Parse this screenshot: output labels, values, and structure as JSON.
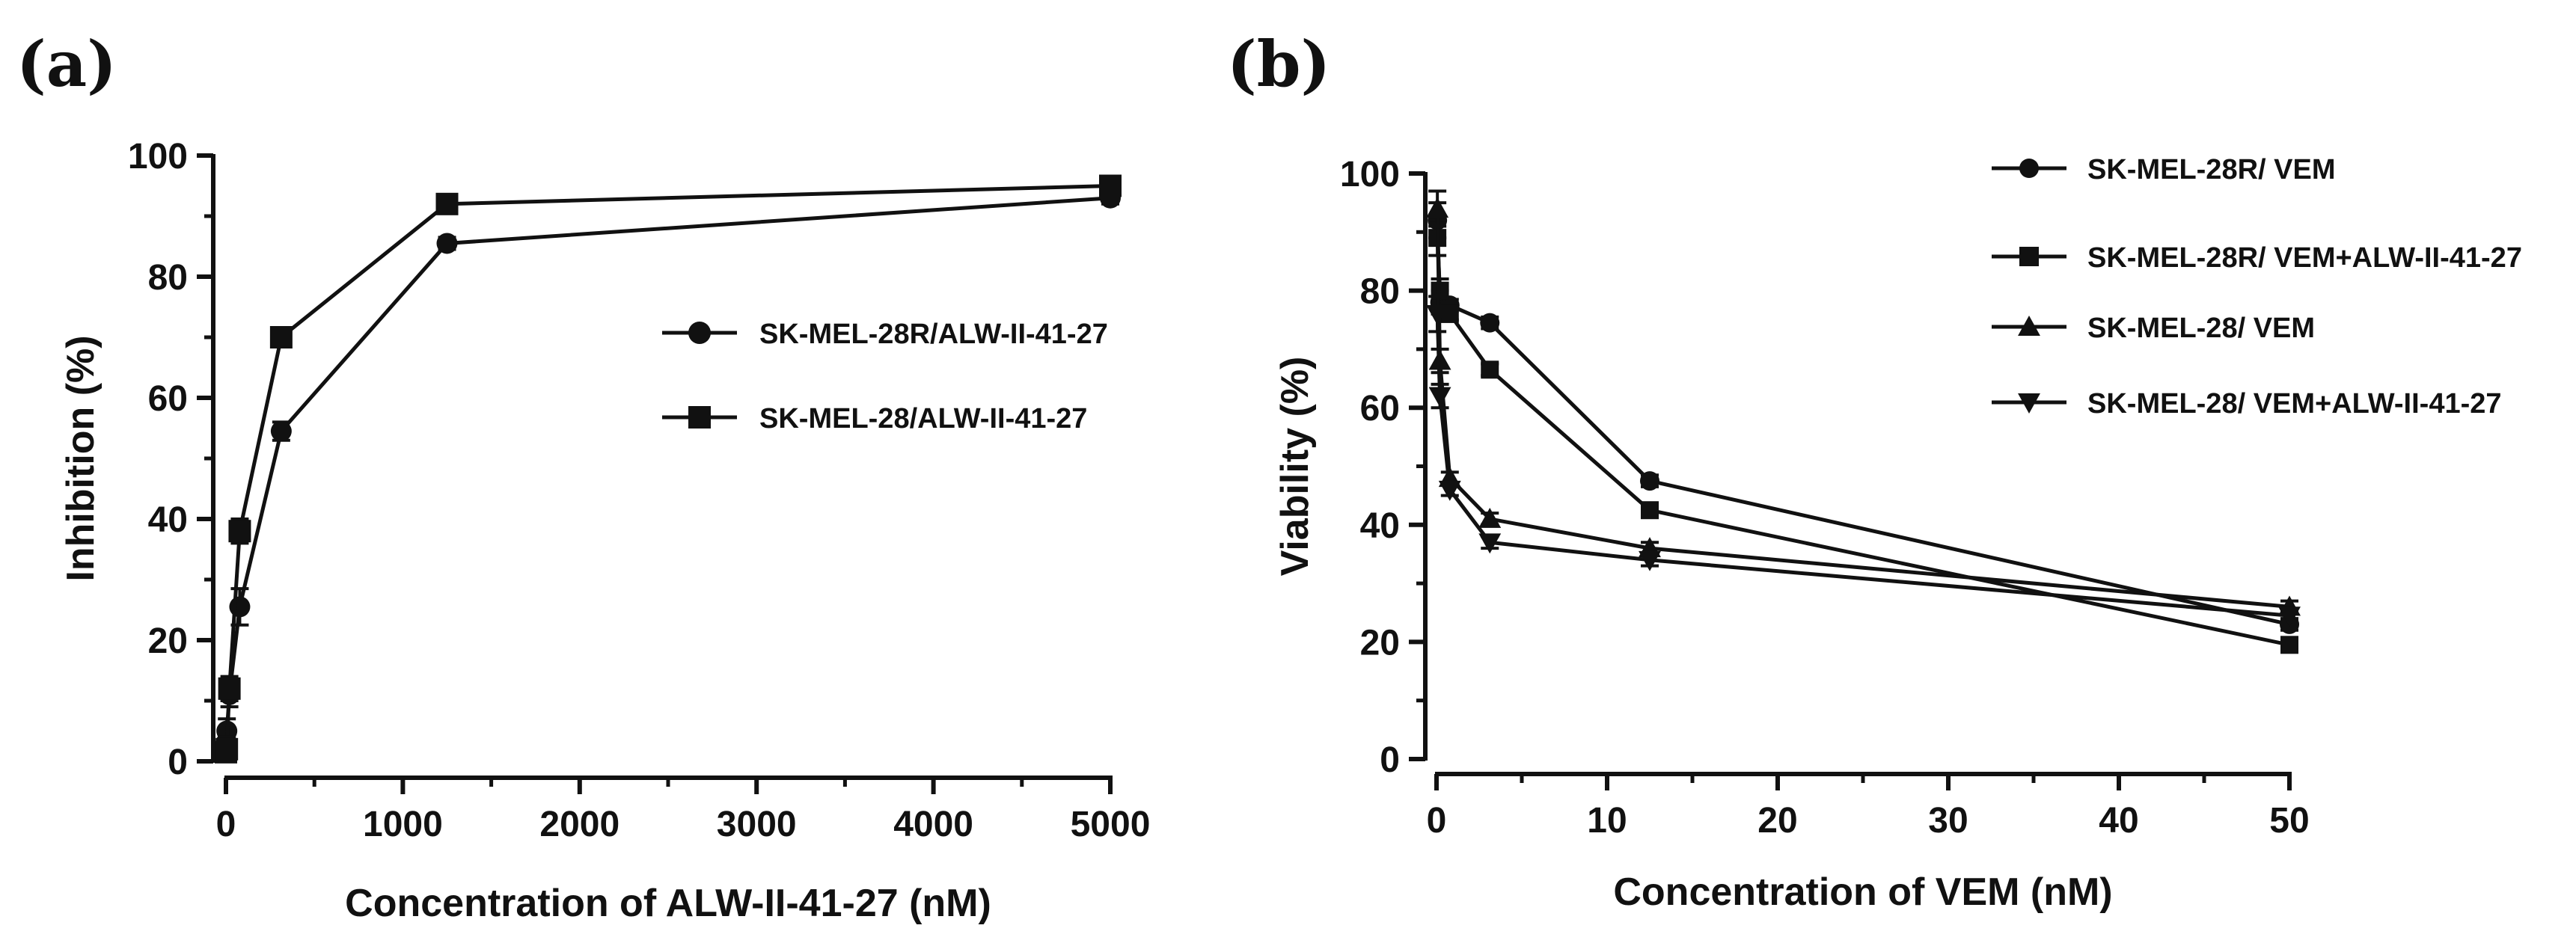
{
  "panels": {
    "a": {
      "label": "(a)"
    },
    "b": {
      "label": "(b)"
    }
  },
  "chart_data": [
    {
      "id": "a",
      "type": "line",
      "title": "",
      "xlabel": "Concentration of ALW-II-41-27 (nM)",
      "ylabel": "Inhibition (%)",
      "xlim": [
        0,
        5000
      ],
      "ylim": [
        0,
        100
      ],
      "xticks": [
        0,
        1000,
        2000,
        3000,
        4000,
        5000
      ],
      "yticks": [
        0,
        20,
        40,
        60,
        80,
        100
      ],
      "legend_position": "right",
      "series": [
        {
          "name": "SK-MEL-28R/ALW-II-41-27",
          "marker": "circle",
          "x": [
            0,
            5,
            19.5,
            78,
            312.5,
            1250,
            5000
          ],
          "y": [
            3,
            5,
            11,
            25.5,
            54.5,
            85.5,
            93
          ],
          "err": [
            2,
            2,
            2,
            3,
            1.5,
            1,
            1
          ]
        },
        {
          "name": "SK-MEL-28/ALW-II-41-27",
          "marker": "square",
          "x": [
            0,
            5,
            19.5,
            78,
            312.5,
            1250,
            5000
          ],
          "y": [
            1.5,
            2,
            12,
            38,
            70,
            92,
            95
          ],
          "err": [
            1.5,
            2,
            2,
            2,
            1.5,
            1,
            1
          ]
        }
      ]
    },
    {
      "id": "b",
      "type": "line",
      "title": "",
      "xlabel": "Concentration of VEM (nM)",
      "ylabel": "Viability (%)",
      "xlim": [
        0,
        50
      ],
      "ylim": [
        0,
        100
      ],
      "xticks": [
        0,
        10,
        20,
        30,
        40,
        50
      ],
      "yticks": [
        0,
        20,
        40,
        60,
        80,
        100
      ],
      "legend_position": "top-right",
      "series": [
        {
          "name": "SK-MEL-28R/ VEM",
          "marker": "circle",
          "x": [
            0.05,
            0.2,
            0.78,
            3.125,
            12.5,
            50
          ],
          "y": [
            92,
            78,
            77.5,
            74.5,
            47.5,
            23
          ],
          "err": [
            3,
            2,
            1,
            1,
            1,
            1
          ]
        },
        {
          "name": "SK-MEL-28R/ VEM+ALW-II-41-27",
          "marker": "square",
          "x": [
            0.05,
            0.2,
            0.78,
            3.125,
            12.5,
            50
          ],
          "y": [
            89,
            80,
            76,
            66.5,
            42.5,
            19.5
          ],
          "err": [
            3,
            2,
            1,
            1,
            1,
            1
          ]
        },
        {
          "name": "SK-MEL-28/ VEM",
          "marker": "triangle",
          "x": [
            0.05,
            0.2,
            0.78,
            3.125,
            12.5,
            50
          ],
          "y": [
            94,
            68,
            48,
            41,
            36,
            26
          ],
          "err": [
            3,
            2,
            1,
            1,
            1,
            1
          ]
        },
        {
          "name": "SK-MEL-28/ VEM+ALW-II-41-27",
          "marker": "triangle-down",
          "x": [
            0.05,
            0.2,
            0.78,
            3.125,
            12.5,
            50
          ],
          "y": [
            76,
            62,
            46,
            37,
            34,
            24.5
          ],
          "err": [
            3,
            2,
            1,
            1,
            1,
            1
          ]
        }
      ]
    }
  ]
}
